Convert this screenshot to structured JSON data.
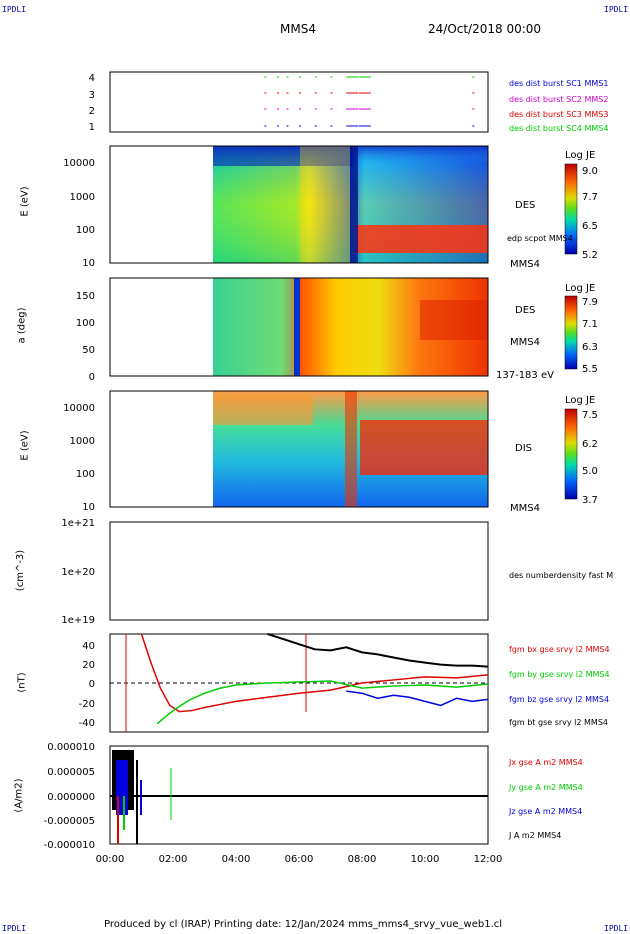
{
  "header": {
    "corner_tl": "IPDLI",
    "corner_tr": "IPDLI",
    "corner_bl": "IPDLI",
    "corner_br": "IPDLI",
    "spacecraft": "MMS4",
    "date": "24/Oct/2018 00:00"
  },
  "footer": {
    "text": "Produced by cl (IRAP)   Printing date: 12/Jan/2024   mms_mms4_srvy_vue_web1.cl"
  },
  "time_axis": {
    "ticks": [
      "00:00",
      "02:00",
      "04:00",
      "06:00",
      "08:00",
      "10:00",
      "12:00"
    ],
    "range_hours": [
      0,
      12
    ]
  },
  "colors": {
    "bx": "#dd0000",
    "by": "#00cc00",
    "bz": "#0000dd",
    "bt": "#000000",
    "magenta": "#cc00cc"
  },
  "chart_data": [
    {
      "type": "scatter",
      "panel": "burst",
      "yticks": [
        "1",
        "2",
        "3",
        "4"
      ],
      "legend": [
        {
          "name": "des dist burst SC1 MMS1",
          "color": "#0000dd"
        },
        {
          "name": "des dist burst SC2 MMS2",
          "color": "#cc00cc"
        },
        {
          "name": "des dist burst SC3 MMS3",
          "color": "#dd0000"
        },
        {
          "name": "des dist burst SC4 MMS4",
          "color": "#00cc00"
        }
      ]
    },
    {
      "type": "heatmap",
      "panel": "des_energy",
      "ylabel": "E (eV)",
      "yticks": [
        "10",
        "100",
        "1000",
        "10000"
      ],
      "label": "DES",
      "sublabel": "edp scpot MMS4",
      "right_label": "MMS4",
      "colorbar": {
        "title": "Log JE",
        "ticks": [
          "9.0",
          "7.7",
          "6.5",
          "5.2"
        ]
      }
    },
    {
      "type": "heatmap",
      "panel": "des_pitch",
      "ylabel": "a (deg)",
      "yticks": [
        "0",
        "50",
        "100",
        "150"
      ],
      "label": "DES",
      "right_label": "MMS4",
      "energy_range": "137-183 eV",
      "colorbar": {
        "title": "Log JE",
        "ticks": [
          "7.9",
          "7.1",
          "6.3",
          "5.5"
        ]
      }
    },
    {
      "type": "heatmap",
      "panel": "dis_energy",
      "ylabel": "E (eV)",
      "yticks": [
        "10",
        "100",
        "1000",
        "10000"
      ],
      "label": "DIS",
      "right_label": "MMS4",
      "colorbar": {
        "title": "Log JE",
        "ticks": [
          "7.5",
          "6.2",
          "5.0",
          "3.7"
        ]
      }
    },
    {
      "type": "line",
      "panel": "density",
      "ylabel": "(cm^-3)",
      "yticks": [
        "1e+19",
        "1e+20",
        "1e+21"
      ],
      "legend": [
        {
          "name": "des numberdensity fast M",
          "color": "#000000"
        }
      ]
    },
    {
      "type": "line",
      "panel": "fgm",
      "ylabel": "(nT)",
      "yticks": [
        "-40",
        "-20",
        "0",
        "20",
        "40"
      ],
      "ylim": [
        -48,
        48
      ],
      "legend": [
        {
          "name": "fgm bx gse srvy l2 MMS4",
          "color": "#dd0000"
        },
        {
          "name": "fgm by gse srvy l2 MMS4",
          "color": "#00cc00"
        },
        {
          "name": "fgm bz gse srvy l2 MMS4",
          "color": "#0000dd"
        },
        {
          "name": "fgm bt gse srvy l2 MMS4",
          "color": "#000000"
        }
      ],
      "series": [
        {
          "name": "bt",
          "x": [
            5.0,
            5.5,
            6.0,
            6.5,
            7.0,
            7.5,
            8.0,
            8.5,
            9.0,
            9.5,
            10.0,
            10.5,
            11.0,
            11.5,
            12.0
          ],
          "values": [
            48,
            43,
            38,
            33,
            32,
            35,
            30,
            28,
            25,
            22,
            20,
            18,
            17,
            17,
            16
          ]
        },
        {
          "name": "bx",
          "x": [
            1.0,
            1.3,
            1.6,
            1.9,
            2.2,
            2.6,
            3.0,
            3.5,
            4.0,
            5.0,
            6.0,
            7.0,
            8.0,
            9.0,
            10.0,
            11.0,
            12.0
          ],
          "values": [
            48,
            20,
            -5,
            -22,
            -28,
            -27,
            -24,
            -21,
            -18,
            -14,
            -10,
            -7,
            0,
            3,
            6,
            5,
            8
          ]
        },
        {
          "name": "by",
          "x": [
            1.5,
            1.8,
            2.1,
            2.5,
            3.0,
            3.5,
            4.0,
            5.0,
            6.0,
            7.0,
            8.0,
            9.0,
            10.0,
            11.0,
            12.0
          ],
          "values": [
            -40,
            -32,
            -25,
            -17,
            -10,
            -5,
            -2,
            0,
            1,
            2,
            -5,
            -3,
            -2,
            -4,
            -1
          ]
        },
        {
          "name": "bz",
          "x": [
            7.5,
            8.0,
            8.5,
            9.0,
            9.5,
            10.0,
            10.5,
            11.0,
            11.5,
            12.0
          ],
          "values": [
            -8,
            -10,
            -15,
            -12,
            -14,
            -18,
            -22,
            -15,
            -18,
            -16
          ]
        }
      ]
    },
    {
      "type": "line",
      "panel": "current",
      "ylabel": "(A/m2)",
      "yticks": [
        "0.000010",
        "0.000005",
        "0.000000",
        "-0.000005",
        "-0.000010"
      ],
      "ylim": [
        -1e-05,
        1e-05
      ],
      "legend": [
        {
          "name": "Jx gse A m2 MMS4",
          "color": "#dd0000"
        },
        {
          "name": "Jy gse A m2 MMS4",
          "color": "#00cc00"
        },
        {
          "name": "Jz gse A m2 MMS4",
          "color": "#0000dd"
        },
        {
          "name": "J A m2 MMS4",
          "color": "#000000"
        }
      ]
    }
  ]
}
